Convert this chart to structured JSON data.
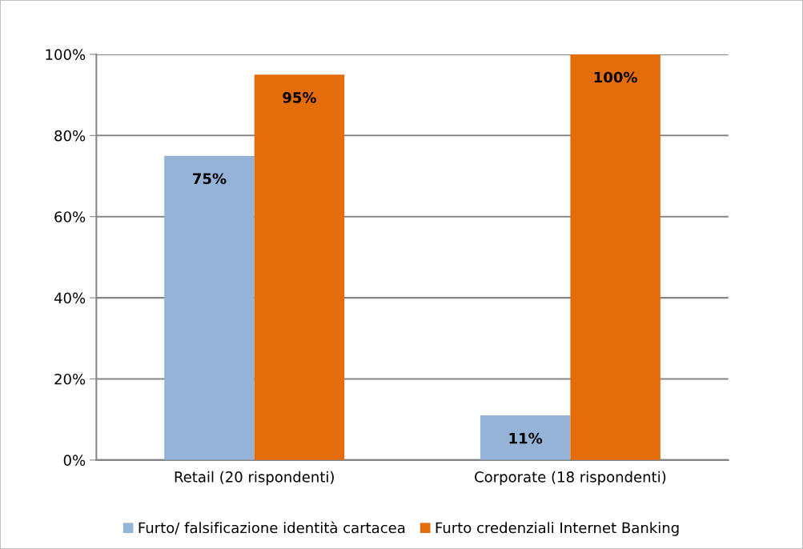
{
  "chart_data": {
    "type": "bar",
    "categories": [
      "Retail (20 rispondenti)",
      "Corporate (18 rispondenti)"
    ],
    "series": [
      {
        "name": "Furto/ falsificazione identità cartacea",
        "color": "#95b3d7",
        "values": [
          75,
          11
        ],
        "value_labels": [
          "75%",
          "11%"
        ]
      },
      {
        "name": "Furto credenziali Internet Banking",
        "color": "#e46c0a",
        "values": [
          95,
          100
        ],
        "value_labels": [
          "95%",
          "100%"
        ]
      }
    ],
    "ylim": [
      0,
      100
    ],
    "yticks": [
      {
        "value": 0,
        "label": "0%"
      },
      {
        "value": 20,
        "label": "20%"
      },
      {
        "value": 40,
        "label": "40%"
      },
      {
        "value": 60,
        "label": "60%"
      },
      {
        "value": 80,
        "label": "80%"
      },
      {
        "value": 100,
        "label": "100%"
      }
    ],
    "grid": "y",
    "legend": "bottom"
  }
}
